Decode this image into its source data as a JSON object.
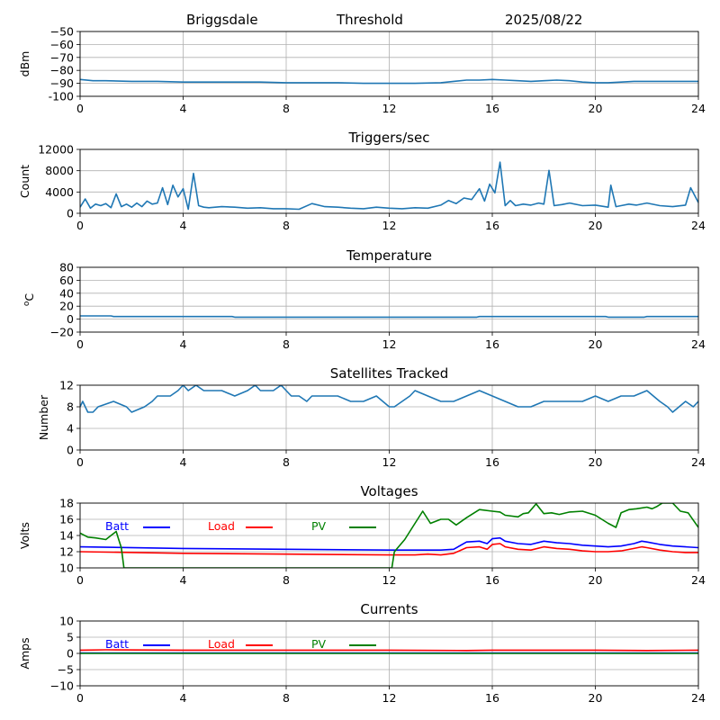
{
  "header": {
    "station": "Briggsdale",
    "mode": "Threshold",
    "date": "2025/08/22"
  },
  "chart_data": [
    {
      "type": "line",
      "title": "",
      "xlabel": "",
      "ylabel": "dBm",
      "xlim": [
        0,
        24
      ],
      "ylim": [
        -100,
        -50
      ],
      "xticks": [
        "0",
        "4",
        "8",
        "12",
        "16",
        "20",
        "24"
      ],
      "yticks": [
        "-100",
        "−90",
        "−80",
        "−70",
        "−60",
        "−50"
      ],
      "grid": true,
      "series": [
        {
          "color": "#1f77b4",
          "x": [
            0,
            0.5,
            1,
            2,
            3,
            4,
            5,
            6,
            7,
            8,
            9,
            10,
            11,
            12,
            13,
            14,
            14.5,
            15,
            15.5,
            16,
            16.5,
            17,
            17.5,
            18,
            18.5,
            19,
            19.5,
            20,
            20.5,
            21,
            21.5,
            22,
            23,
            24
          ],
          "y": [
            -87,
            -88,
            -88,
            -88.5,
            -88.5,
            -89,
            -89,
            -89,
            -89,
            -89.5,
            -89.5,
            -89.5,
            -90,
            -90,
            -90,
            -89.5,
            -88.5,
            -87.5,
            -87.5,
            -87,
            -87.5,
            -88,
            -88.5,
            -88,
            -87.5,
            -88,
            -89,
            -89.5,
            -89.5,
            -89,
            -88.5,
            -88.5,
            -88.5,
            -88.5
          ]
        }
      ]
    },
    {
      "type": "line",
      "title": "Triggers/sec",
      "xlabel": "",
      "ylabel": "Count",
      "xlim": [
        0,
        24
      ],
      "ylim": [
        0,
        12500
      ],
      "xticks": [
        "0",
        "4",
        "8",
        "12",
        "16",
        "20",
        "24"
      ],
      "yticks": [
        "0",
        "4000",
        "8000",
        "12000"
      ],
      "grid": true,
      "series": [
        {
          "color": "#1f77b4",
          "x": [
            0,
            0.2,
            0.4,
            0.6,
            0.8,
            1.0,
            1.2,
            1.4,
            1.6,
            1.8,
            2.0,
            2.2,
            2.4,
            2.6,
            2.8,
            3.0,
            3.2,
            3.4,
            3.6,
            3.8,
            4.0,
            4.2,
            4.4,
            4.6,
            4.8,
            5.0,
            5.5,
            6.0,
            6.5,
            7.0,
            7.5,
            8.0,
            8.5,
            9.0,
            9.5,
            10.0,
            10.5,
            11.0,
            11.5,
            12.0,
            12.5,
            13.0,
            13.5,
            14.0,
            14.3,
            14.6,
            14.9,
            15.2,
            15.5,
            15.7,
            15.9,
            16.1,
            16.3,
            16.5,
            16.7,
            16.9,
            17.2,
            17.5,
            17.8,
            18.0,
            18.2,
            18.4,
            18.7,
            19.0,
            19.5,
            20.0,
            20.5,
            20.6,
            20.8,
            21.0,
            21.3,
            21.6,
            22.0,
            22.5,
            23.0,
            23.5,
            23.7,
            24.0
          ],
          "y": [
            1200,
            2800,
            1000,
            1800,
            1500,
            1900,
            1100,
            3800,
            1300,
            1800,
            1200,
            2000,
            1300,
            2400,
            1800,
            2000,
            5000,
            1700,
            5500,
            3200,
            4800,
            800,
            7800,
            1500,
            1200,
            1100,
            1300,
            1200,
            1000,
            1100,
            900,
            900,
            800,
            1900,
            1300,
            1200,
            1000,
            900,
            1200,
            1000,
            900,
            1100,
            1000,
            1600,
            2500,
            1900,
            3000,
            2700,
            4800,
            2400,
            5700,
            4000,
            10000,
            1500,
            2500,
            1500,
            1800,
            1600,
            2000,
            1800,
            8400,
            1500,
            1700,
            2000,
            1500,
            1600,
            1200,
            5500,
            1300,
            1500,
            1800,
            1600,
            2000,
            1500,
            1300,
            1600,
            5000,
            2100
          ]
        }
      ]
    },
    {
      "type": "line",
      "title": "Temperature",
      "xlabel": "",
      "ylabel": "°C",
      "ylabel_prefix": "o",
      "ylabel_main": "C",
      "xlim": [
        0,
        24
      ],
      "ylim": [
        -20,
        80
      ],
      "xticks": [
        "0",
        "4",
        "8",
        "12",
        "16",
        "20",
        "24"
      ],
      "yticks": [
        "−20",
        "0",
        "20",
        "40",
        "60",
        "80"
      ],
      "grid": true,
      "series": [
        {
          "color": "#1f77b4",
          "x": [
            0,
            1.2,
            1.3,
            5.9,
            6.0,
            15.4,
            15.5,
            20.4,
            20.5,
            21.9,
            22.0,
            24
          ],
          "y": [
            5,
            5,
            4,
            4,
            3,
            3,
            4,
            4,
            3,
            3,
            4,
            4
          ]
        }
      ]
    },
    {
      "type": "line",
      "title": "Satellites Tracked",
      "xlabel": "",
      "ylabel": "Number",
      "xlim": [
        0,
        24
      ],
      "ylim": [
        0,
        12
      ],
      "xticks": [
        "0",
        "4",
        "8",
        "12",
        "16",
        "20",
        "24"
      ],
      "yticks": [
        "0",
        "4",
        "8",
        "12"
      ],
      "grid": true,
      "series": [
        {
          "color": "#1f77b4",
          "x": [
            0,
            0.1,
            0.2,
            0.3,
            0.5,
            0.7,
            1.3,
            1.8,
            2.0,
            2.5,
            2.8,
            3.0,
            3.3,
            3.5,
            3.8,
            4.0,
            4.2,
            4.5,
            4.8,
            5.0,
            5.3,
            5.5,
            6.0,
            6.5,
            6.8,
            7.0,
            7.5,
            7.8,
            8.0,
            8.2,
            8.5,
            8.8,
            9.0,
            9.5,
            10.0,
            10.5,
            11.0,
            11.5,
            12.0,
            12.2,
            12.5,
            12.8,
            13.0,
            13.5,
            14.0,
            14.5,
            15.0,
            15.5,
            16.0,
            16.5,
            17.0,
            17.5,
            18.0,
            18.5,
            19.0,
            19.5,
            20.0,
            20.5,
            21.0,
            21.5,
            22.0,
            22.5,
            22.8,
            23.0,
            23.5,
            23.8,
            24.0
          ],
          "y": [
            8,
            9,
            8,
            7,
            7,
            8,
            9,
            8,
            7,
            8,
            9,
            10,
            10,
            10,
            11,
            12,
            11,
            12,
            11,
            11,
            11,
            11,
            10,
            11,
            12,
            11,
            11,
            12,
            11,
            10,
            10,
            9,
            10,
            10,
            10,
            9,
            9,
            10,
            8,
            8,
            9,
            10,
            11,
            10,
            9,
            9,
            10,
            11,
            10,
            9,
            8,
            8,
            9,
            9,
            9,
            9,
            10,
            9,
            10,
            10,
            11,
            9,
            8,
            7,
            9,
            8,
            9
          ]
        }
      ]
    },
    {
      "type": "line",
      "title": "Voltages",
      "xlabel": "",
      "ylabel": "Volts",
      "xlim": [
        0,
        24
      ],
      "ylim": [
        10,
        18
      ],
      "xticks": [
        "0",
        "4",
        "8",
        "12",
        "16",
        "20",
        "24"
      ],
      "yticks": [
        "10",
        "12",
        "14",
        "16",
        "18"
      ],
      "grid": true,
      "legend": "top-left",
      "series": [
        {
          "name": "Batt",
          "color": "#0000ff",
          "x": [
            0,
            4,
            8,
            12,
            12.5,
            13,
            13.5,
            14,
            14.5,
            15,
            15.5,
            15.8,
            16,
            16.3,
            16.5,
            17,
            17.5,
            18,
            18.5,
            19,
            19.5,
            20,
            20.5,
            21,
            21.5,
            21.8,
            22,
            22.5,
            23,
            23.5,
            24
          ],
          "y": [
            12.6,
            12.4,
            12.3,
            12.2,
            12.2,
            12.2,
            12.2,
            12.2,
            12.3,
            13.2,
            13.3,
            13.0,
            13.6,
            13.7,
            13.3,
            13.0,
            12.9,
            13.3,
            13.1,
            13.0,
            12.8,
            12.7,
            12.6,
            12.7,
            13.0,
            13.3,
            13.2,
            12.9,
            12.7,
            12.6,
            12.5
          ]
        },
        {
          "name": "Load",
          "color": "#ff0000",
          "x": [
            0,
            4,
            8,
            12,
            12.5,
            13,
            13.5,
            14,
            14.5,
            15,
            15.5,
            15.8,
            16,
            16.3,
            16.5,
            17,
            17.5,
            18,
            18.5,
            19,
            19.5,
            20,
            20.5,
            21,
            21.5,
            21.8,
            22,
            22.5,
            23,
            23.5,
            24
          ],
          "y": [
            12.0,
            11.8,
            11.7,
            11.6,
            11.6,
            11.6,
            11.7,
            11.6,
            11.8,
            12.5,
            12.6,
            12.3,
            12.9,
            13.0,
            12.6,
            12.3,
            12.2,
            12.6,
            12.4,
            12.3,
            12.1,
            12.0,
            12.0,
            12.1,
            12.4,
            12.6,
            12.5,
            12.2,
            12.0,
            11.9,
            11.9
          ]
        },
        {
          "name": "PV",
          "color": "#008000",
          "x": [
            0,
            0.3,
            0.6,
            1.0,
            1.2,
            1.4,
            1.5,
            1.6,
            1.7,
            12.1,
            12.2,
            12.6,
            13.0,
            13.3,
            13.6,
            14.0,
            14.3,
            14.6,
            15.0,
            15.5,
            16.0,
            16.3,
            16.5,
            17.0,
            17.2,
            17.4,
            17.7,
            18.0,
            18.3,
            18.6,
            19.0,
            19.5,
            20.0,
            20.5,
            20.8,
            21.0,
            21.3,
            21.6,
            22.0,
            22.2,
            22.4,
            22.6,
            23.0,
            23.3,
            23.6,
            24.0
          ],
          "y": [
            14.3,
            13.8,
            13.7,
            13.5,
            14.0,
            14.5,
            13.5,
            12.5,
            10.0,
            10.0,
            12.0,
            13.5,
            15.5,
            17.0,
            15.5,
            16.0,
            16.0,
            15.3,
            16.2,
            17.2,
            17.0,
            16.9,
            16.5,
            16.3,
            16.7,
            16.8,
            17.9,
            16.7,
            16.8,
            16.6,
            16.9,
            17.0,
            16.5,
            15.5,
            15.0,
            16.8,
            17.2,
            17.3,
            17.5,
            17.3,
            17.6,
            18.0,
            18.0,
            17.0,
            16.8,
            15.0
          ]
        }
      ]
    },
    {
      "type": "line",
      "title": "Currents",
      "xlabel": "",
      "ylabel": "Amps",
      "xlim": [
        0,
        24
      ],
      "ylim": [
        -10,
        10
      ],
      "xticks": [
        "0",
        "4",
        "8",
        "12",
        "16",
        "20",
        "24"
      ],
      "yticks": [
        "−10",
        "−5",
        "0",
        "5",
        "10"
      ],
      "grid": true,
      "legend": "top-left",
      "series": [
        {
          "name": "Batt",
          "color": "#0000ff",
          "x": [
            0,
            24
          ],
          "y": [
            0.1,
            0.1
          ]
        },
        {
          "name": "Load",
          "color": "#ff0000",
          "x": [
            0,
            1,
            4,
            8,
            12,
            15,
            16,
            18,
            20,
            22,
            24
          ],
          "y": [
            1.0,
            1.1,
            1.0,
            1.0,
            1.0,
            0.9,
            1.0,
            1.0,
            1.0,
            0.9,
            1.0
          ]
        },
        {
          "name": "PV",
          "color": "#008000",
          "x": [
            0,
            24
          ],
          "y": [
            0.0,
            0.0
          ]
        }
      ]
    }
  ]
}
